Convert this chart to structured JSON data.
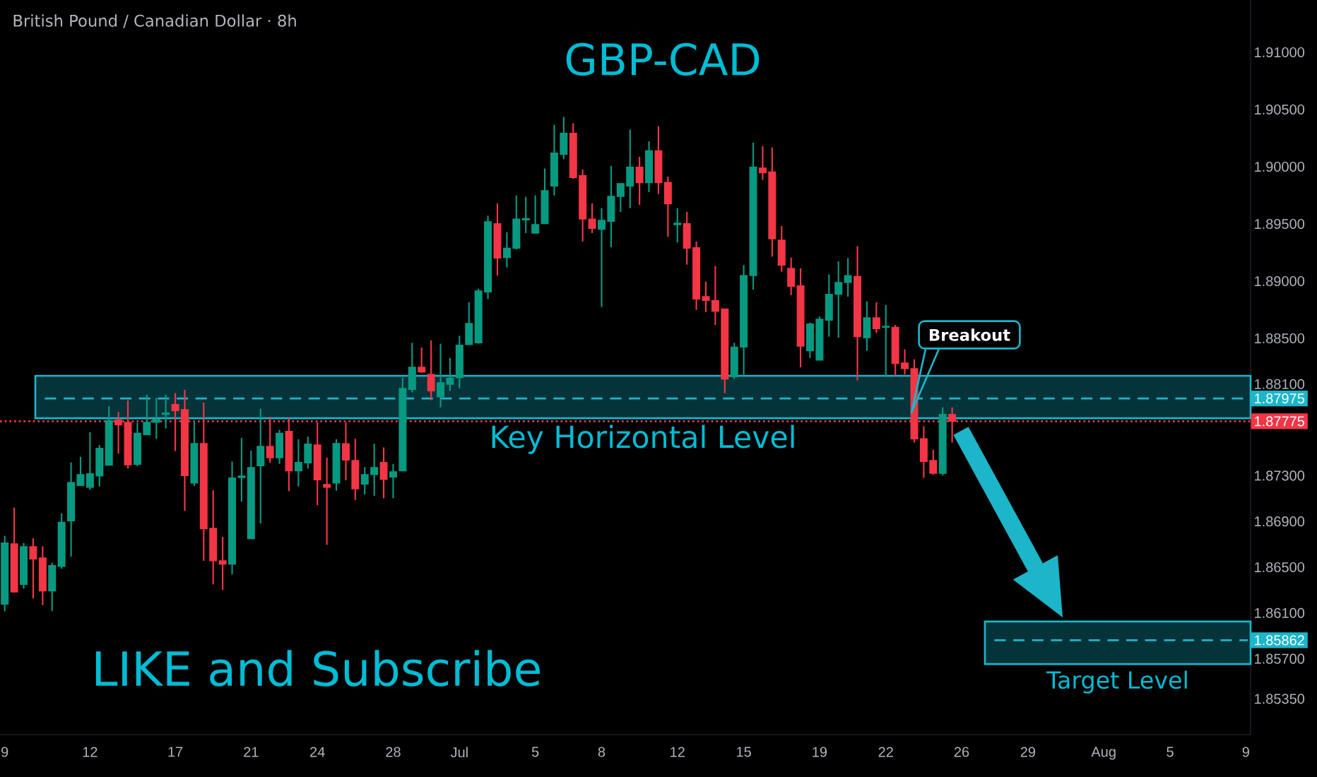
{
  "chart_data": {
    "type": "candlestick",
    "title": "GBP-CAD",
    "subtitle": "British Pound / Canadian Dollar · 8h",
    "categories": [
      "9",
      null,
      null,
      null,
      null,
      null,
      null,
      null,
      null,
      "12",
      null,
      null,
      null,
      null,
      null,
      null,
      null,
      null,
      "17",
      null,
      null,
      null,
      null,
      null,
      null,
      null,
      "21",
      null,
      null,
      null,
      null,
      null,
      null,
      "24",
      null,
      null,
      null,
      null,
      null,
      null,
      null,
      "28",
      null,
      null,
      null,
      null,
      null,
      null,
      "Jul",
      null,
      null,
      null,
      null,
      null,
      null,
      null,
      "5",
      null,
      null,
      null,
      null,
      null,
      null,
      "8",
      null,
      null,
      null,
      null,
      null,
      null,
      null,
      "12",
      null,
      null,
      null,
      null,
      null,
      null,
      "15",
      null,
      null,
      null,
      null,
      null,
      null,
      null,
      "19",
      null,
      null,
      null,
      null,
      null,
      null,
      "22",
      null,
      null,
      null,
      null,
      null,
      null,
      null,
      "26",
      null,
      null,
      null,
      null,
      null,
      null,
      "29",
      null,
      null,
      null,
      null,
      null,
      null,
      null,
      "Aug",
      null,
      null,
      null,
      null,
      null,
      null,
      "5",
      null,
      null,
      null,
      null,
      null,
      null,
      null,
      "9"
    ],
    "ohlc": [
      [
        1.86177,
        1.86774,
        1.86116,
        1.86712
      ],
      [
        1.86704,
        1.87021,
        1.86284,
        1.86284
      ],
      [
        1.8635,
        1.86712,
        1.86313,
        1.86679
      ],
      [
        1.86679,
        1.86753,
        1.86227,
        1.86572
      ],
      [
        1.86581,
        1.86683,
        1.86169,
        1.86293
      ],
      [
        1.86293,
        1.86539,
        1.86116,
        1.86515
      ],
      [
        1.86507,
        1.86971,
        1.86486,
        1.86893
      ],
      [
        1.86906,
        1.87416,
        1.86593,
        1.87239
      ],
      [
        1.87214,
        1.87465,
        1.87214,
        1.87309
      ],
      [
        1.87198,
        1.87679,
        1.87177,
        1.87317
      ],
      [
        1.87297,
        1.87568,
        1.87206,
        1.87539
      ],
      [
        1.87391,
        1.87906,
        1.87391,
        1.87782
      ],
      [
        1.87786,
        1.87856,
        1.87494,
        1.87745
      ],
      [
        1.87766,
        1.87959,
        1.87362,
        1.87395
      ],
      [
        1.87399,
        1.87762,
        1.87383,
        1.87671
      ],
      [
        1.87659,
        1.88008,
        1.87659,
        1.87766
      ],
      [
        1.87766,
        1.8798,
        1.87622,
        1.8779
      ],
      [
        1.87836,
        1.88008,
        1.87712,
        1.87848
      ],
      [
        1.87922,
        1.88021,
        1.87515,
        1.87869
      ],
      [
        1.87877,
        1.8805,
        1.86992,
        1.87301
      ],
      [
        1.87235,
        1.87774,
        1.8721,
        1.87581
      ],
      [
        1.87581,
        1.87939,
        1.86556,
        1.86836
      ],
      [
        1.8684,
        1.87173,
        1.8635,
        1.86556
      ],
      [
        1.86556,
        1.86766,
        1.86301,
        1.86527
      ],
      [
        1.86527,
        1.87424,
        1.86437,
        1.8728
      ],
      [
        1.87284,
        1.8763,
        1.87074,
        1.87297
      ],
      [
        1.86749,
        1.87519,
        1.86749,
        1.87371
      ],
      [
        1.87387,
        1.87885,
        1.86881,
        1.87556
      ],
      [
        1.87556,
        1.87815,
        1.87412,
        1.87457
      ],
      [
        1.87457,
        1.877,
        1.87404,
        1.87671
      ],
      [
        1.87688,
        1.87803,
        1.87165,
        1.87342
      ],
      [
        1.87342,
        1.87618,
        1.87206,
        1.87416
      ],
      [
        1.87412,
        1.87642,
        1.87362,
        1.87576
      ],
      [
        1.87568,
        1.87766,
        1.87041,
        1.87264
      ],
      [
        1.87223,
        1.87457,
        1.86696,
        1.87198
      ],
      [
        1.87235,
        1.87618,
        1.87169,
        1.87581
      ],
      [
        1.8758,
        1.87766,
        1.87259,
        1.87436
      ],
      [
        1.87432,
        1.87622,
        1.87087,
        1.87185
      ],
      [
        1.87227,
        1.87375,
        1.87136,
        1.87309
      ],
      [
        1.87309,
        1.8758,
        1.87124,
        1.87371
      ],
      [
        1.87416,
        1.87547,
        1.87103,
        1.87268
      ],
      [
        1.87288,
        1.87403,
        1.87103,
        1.87334
      ],
      [
        1.87342,
        1.88157,
        1.87342,
        1.88062
      ],
      [
        1.88054,
        1.88461,
        1.88029,
        1.88247
      ],
      [
        1.88247,
        1.8842,
        1.88198,
        1.88206
      ],
      [
        1.88185,
        1.88482,
        1.87959,
        1.88041
      ],
      [
        1.87988,
        1.88453,
        1.87897,
        1.88111
      ],
      [
        1.88099,
        1.88329,
        1.88041,
        1.88152
      ],
      [
        1.88157,
        1.88523,
        1.88062,
        1.8844
      ],
      [
        1.88445,
        1.88815,
        1.88445,
        1.8863
      ],
      [
        1.88461,
        1.88934,
        1.88453,
        1.88914
      ],
      [
        1.88905,
        1.89572,
        1.88844,
        1.89519
      ],
      [
        1.89502,
        1.89679,
        1.89049,
        1.89202
      ],
      [
        1.89206,
        1.89428,
        1.89119,
        1.89288
      ],
      [
        1.89288,
        1.89749,
        1.89276,
        1.89543
      ],
      [
        1.89535,
        1.89737,
        1.8942,
        1.89547
      ],
      [
        1.8942,
        1.89749,
        1.8942,
        1.89494
      ],
      [
        1.89502,
        1.89984,
        1.89502,
        1.8979
      ],
      [
        1.89831,
        1.90366,
        1.89749,
        1.90119
      ],
      [
        1.90107,
        1.90436,
        1.90066,
        1.90292
      ],
      [
        1.90292,
        1.90379,
        1.89893,
        1.89905
      ],
      [
        1.89922,
        1.89975,
        1.89346,
        1.89543
      ],
      [
        1.89543,
        1.89679,
        1.8942,
        1.89461
      ],
      [
        1.89453,
        1.89638,
        1.88774,
        1.89531
      ],
      [
        1.89523,
        1.90008,
        1.89296,
        1.89741
      ],
      [
        1.89741,
        1.89852,
        1.89605,
        1.89852
      ],
      [
        1.89831,
        1.90325,
        1.89638,
        1.89996
      ],
      [
        1.89996,
        1.90086,
        1.89667,
        1.8986
      ],
      [
        1.8986,
        1.90222,
        1.89778,
        1.9014
      ],
      [
        1.9014,
        1.90354,
        1.89761,
        1.8986
      ],
      [
        1.89864,
        1.89914,
        1.89387,
        1.89675
      ],
      [
        1.89494,
        1.89638,
        1.89338,
        1.89506
      ],
      [
        1.89502,
        1.89605,
        1.89144,
        1.89288
      ],
      [
        1.89292,
        1.89346,
        1.88749,
        1.88844
      ],
      [
        1.88864,
        1.88996,
        1.88729,
        1.88831
      ],
      [
        1.88831,
        1.89132,
        1.88617,
        1.88737
      ],
      [
        1.88757,
        1.88757,
        1.88021,
        1.88144
      ],
      [
        1.88165,
        1.88461,
        1.88144,
        1.88424
      ],
      [
        1.88424,
        1.8914,
        1.88165,
        1.89049
      ],
      [
        1.89049,
        1.9021,
        1.88926,
        1.89996
      ],
      [
        1.89988,
        1.90181,
        1.89885,
        1.89947
      ],
      [
        1.89955,
        1.90169,
        1.89214,
        1.8937
      ],
      [
        1.89358,
        1.89482,
        1.89082,
        1.8914
      ],
      [
        1.89111,
        1.89206,
        1.88877,
        1.88955
      ],
      [
        1.88959,
        1.89111,
        1.88247,
        1.88432
      ],
      [
        1.88391,
        1.88638,
        1.88329,
        1.88626
      ],
      [
        1.88309,
        1.88691,
        1.88309,
        1.88667
      ],
      [
        1.88659,
        1.89058,
        1.88515,
        1.88885
      ],
      [
        1.88885,
        1.89173,
        1.88506,
        1.88988
      ],
      [
        1.88988,
        1.89202,
        1.88864,
        1.89049
      ],
      [
        1.89041,
        1.89305,
        1.88132,
        1.88515
      ],
      [
        1.88506,
        1.88823,
        1.88391,
        1.88679
      ],
      [
        1.88679,
        1.88815,
        1.88547,
        1.88584
      ],
      [
        1.88597,
        1.8879,
        1.88165,
        1.88605
      ],
      [
        1.88597,
        1.88617,
        1.88173,
        1.8828
      ],
      [
        1.88284,
        1.88403,
        1.88185,
        1.88235
      ],
      [
        1.88235,
        1.88317,
        1.87589,
        1.87622
      ],
      [
        1.87622,
        1.87733,
        1.8728,
        1.87424
      ],
      [
        1.87432,
        1.87527,
        1.87309,
        1.87321
      ],
      [
        1.87321,
        1.87897,
        1.87301,
        1.87836
      ],
      [
        1.87836,
        1.87897,
        1.87589,
        1.87775
      ],
      null,
      null,
      null,
      null,
      null,
      null,
      null,
      null,
      null,
      null,
      null,
      null,
      null,
      null,
      null,
      null,
      null,
      null,
      null,
      null,
      null,
      null,
      null,
      null,
      null,
      null,
      null,
      null,
      null,
      null,
      null
    ],
    "colors": [
      "#089981",
      "#f23645",
      "#089981",
      "#f23645",
      "#f23645",
      "#089981",
      "#089981",
      "#089981",
      "#089981",
      "#089981",
      "#089981",
      "#089981",
      "#f23645",
      "#f23645",
      "#089981",
      "#089981",
      "#089981",
      "#089981",
      "#f23645",
      "#f23645",
      "#089981",
      "#f23645",
      "#f23645",
      "#f23645",
      "#089981",
      "#089981",
      "#089981",
      "#089981",
      "#f23645",
      "#089981",
      "#f23645",
      "#089981",
      "#089981",
      "#f23645",
      "#f23645",
      "#089981",
      "#f23645",
      "#f23645",
      "#089981",
      "#089981",
      "#f23645",
      "#089981",
      "#089981",
      "#089981",
      "#f23645",
      "#f23645",
      "#089981",
      "#089981",
      "#089981",
      "#089981",
      "#089981",
      "#089981",
      "#f23645",
      "#089981",
      "#089981",
      "#089981",
      "#089981",
      "#089981",
      "#089981",
      "#089981",
      "#f23645",
      "#f23645",
      "#f23645",
      "#089981",
      "#089981",
      "#089981",
      "#089981",
      "#f23645",
      "#089981",
      "#f23645",
      "#f23645",
      "#089981",
      "#f23645",
      "#f23645",
      "#f23645",
      "#f23645",
      "#f23645",
      "#089981",
      "#089981",
      "#089981",
      "#f23645",
      "#f23645",
      "#f23645",
      "#f23645",
      "#f23645",
      "#089981",
      "#089981",
      "#089981",
      "#089981",
      "#089981",
      "#f23645",
      "#089981",
      "#f23645",
      "#089981",
      "#f23645",
      "#f23645",
      "#f23645",
      "#f23645",
      "#f23645",
      "#089981",
      "#f23645",
      null,
      null,
      null,
      null,
      null,
      null,
      null,
      null,
      null,
      null,
      null,
      null,
      null,
      null,
      null,
      null,
      null,
      null,
      null,
      null,
      null,
      null,
      null,
      null,
      null,
      null,
      null,
      null,
      null,
      null,
      null
    ],
    "ylim": [
      1.85037,
      1.91457
    ],
    "yticks": [
      {
        "value": 1.91,
        "label": "1.91000"
      },
      {
        "value": 1.905,
        "label": "1.90500"
      },
      {
        "value": 1.9,
        "label": "1.90000"
      },
      {
        "value": 1.895,
        "label": "1.89500"
      },
      {
        "value": 1.89,
        "label": "1.89000"
      },
      {
        "value": 1.885,
        "label": "1.88500"
      },
      {
        "value": 1.881,
        "label": "1.88100"
      },
      {
        "value": 1.873,
        "label": "1.87300"
      },
      {
        "value": 1.869,
        "label": "1.86900"
      },
      {
        "value": 1.865,
        "label": "1.86500"
      },
      {
        "value": 1.861,
        "label": "1.86100"
      },
      {
        "value": 1.857,
        "label": "1.85700"
      },
      {
        "value": 1.8535,
        "label": "1.85350"
      }
    ],
    "bands": [
      {
        "axis": "y",
        "from": 1.87802,
        "to": 1.88173,
        "label": "Key Horizontal Level",
        "color": "#05333a"
      },
      {
        "axis": "y",
        "from": 1.85654,
        "to": 1.86025,
        "label": "Target Level",
        "color": "#05333a"
      }
    ],
    "ref_lines": [
      {
        "axis": "y",
        "value": 1.87975,
        "label": "1.87975",
        "color": "#1cb5c9",
        "line_style": "dashed"
      },
      {
        "axis": "y",
        "value": 1.85862,
        "label": "1.85862",
        "color": "#1cb5c9",
        "line_style": "dashed"
      },
      {
        "axis": "y",
        "value": 1.87775,
        "label": "1.87775",
        "color": "#f23645",
        "line_style": "dotted"
      }
    ],
    "annotations": [
      "Breakout",
      "LIKE and Subscribe"
    ]
  }
}
